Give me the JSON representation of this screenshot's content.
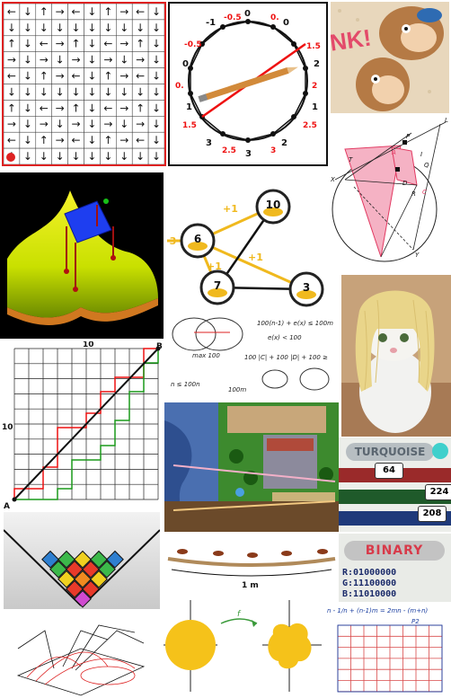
{
  "clock": {
    "labels": [
      "0",
      "0.",
      "0.5",
      "1",
      "1.5",
      "2",
      "2.5",
      "3",
      "3",
      "2.5",
      "2",
      "1.5",
      "1",
      "0.",
      "0",
      "-0.5",
      "-1",
      "-0.5"
    ],
    "red_labels": [
      "-0.5",
      "0.",
      "1.5",
      "2",
      "2.5",
      "3",
      "2.5",
      "1.5",
      "0.",
      "-0.5"
    ]
  },
  "graph": {
    "nodes": [
      "10",
      "6",
      "7",
      "3"
    ],
    "edges": [
      "+1",
      "+1",
      "+1",
      "-3"
    ]
  },
  "lattice": {
    "top_label": "10",
    "side_label": "10",
    "corner_a": "A",
    "corner_b": "B"
  },
  "notes": {
    "lines": [
      "100(n-1) + e(x) ≤ 100m",
      "e(x) < 100",
      "100 |C| + 100 |D| + 100 ≥",
      "n ≤ 100n",
      "100m",
      "max 100"
    ]
  },
  "geom": {
    "points": [
      "L",
      "P",
      "Q",
      "T",
      "X",
      "I",
      "A",
      "D",
      "R",
      "C",
      "Y"
    ]
  },
  "color": {
    "title": "TURQUOISE",
    "r": "64",
    "g": "224",
    "b": "208"
  },
  "binary": {
    "title": "BINARY",
    "r": "R:01000000",
    "g": "G:11100000",
    "b": "B:11010000"
  },
  "ants": {
    "measure": "1 m"
  },
  "blob": {
    "map_label": "f"
  },
  "grid": {
    "formula": "n - 1/n + (n-1)m = 2mn - (m+n)",
    "label": "P2"
  }
}
